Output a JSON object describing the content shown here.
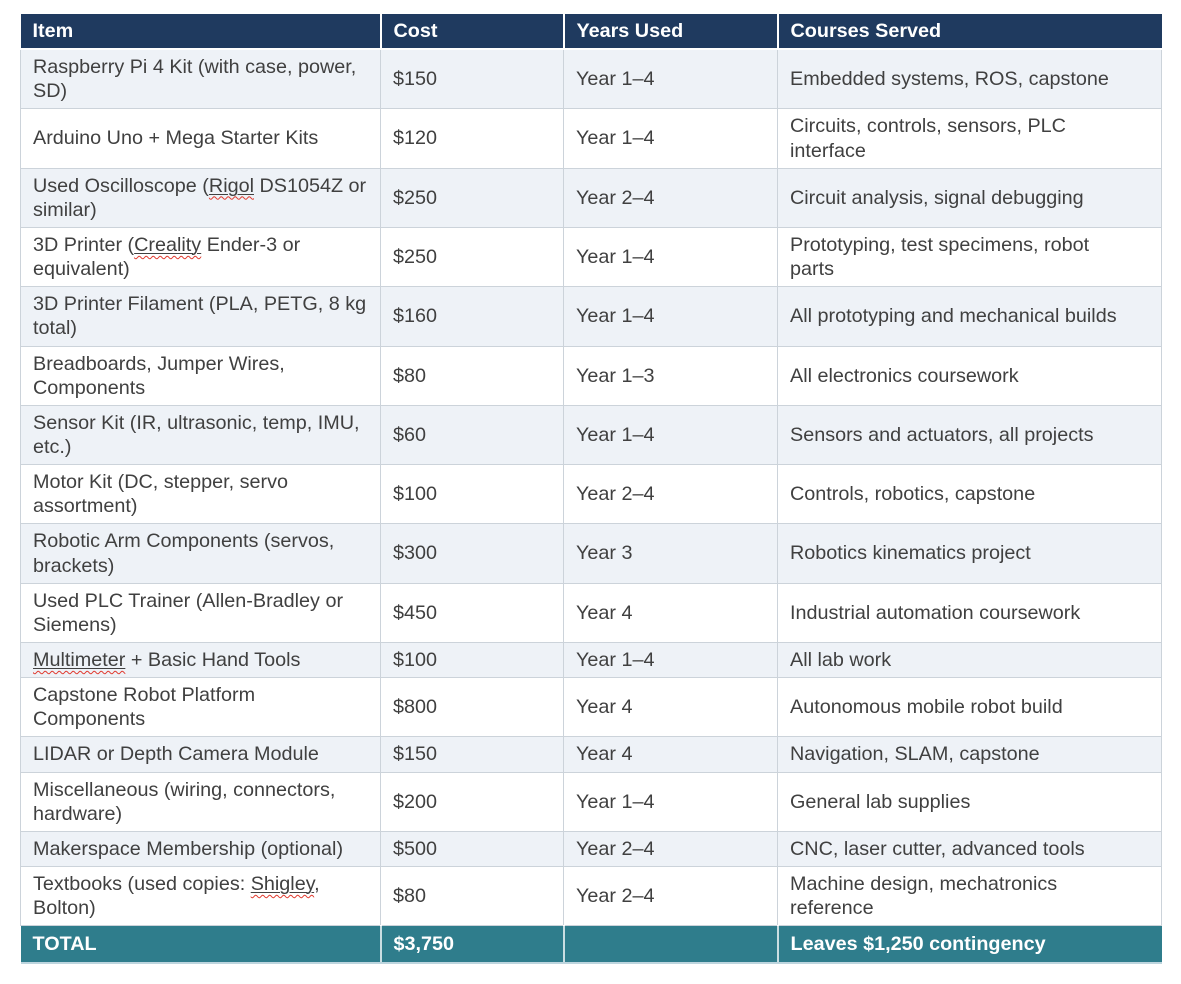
{
  "table": {
    "columns": [
      {
        "label": "Item"
      },
      {
        "label": "Cost"
      },
      {
        "label": "Years Used"
      },
      {
        "label": "Courses Served"
      }
    ],
    "rows": [
      {
        "item": "Raspberry Pi 4 Kit (with case, power, SD)",
        "cost": "$150",
        "years": "Year 1–4",
        "courses": "Embedded systems, ROS, capstone"
      },
      {
        "item": "Arduino Uno + Mega Starter Kits",
        "cost": "$120",
        "years": "Year 1–4",
        "courses": "Circuits, controls, sensors, PLC interface"
      },
      {
        "item": "Used Oscilloscope (Rigol DS1054Z or similar)",
        "cost": "$250",
        "years": "Year 2–4",
        "courses": "Circuit analysis, signal debugging"
      },
      {
        "item": "3D Printer (Creality Ender-3 or equivalent)",
        "cost": "$250",
        "years": "Year 1–4",
        "courses": "Prototyping, test specimens, robot parts"
      },
      {
        "item": "3D Printer Filament (PLA, PETG, 8 kg total)",
        "cost": "$160",
        "years": "Year 1–4",
        "courses": "All prototyping and mechanical builds"
      },
      {
        "item": "Breadboards, Jumper Wires, Components",
        "cost": "$80",
        "years": "Year 1–3",
        "courses": "All electronics coursework"
      },
      {
        "item": "Sensor Kit (IR, ultrasonic, temp, IMU, etc.)",
        "cost": "$60",
        "years": "Year 1–4",
        "courses": "Sensors and actuators, all projects"
      },
      {
        "item": "Motor Kit (DC, stepper, servo assortment)",
        "cost": "$100",
        "years": "Year 2–4",
        "courses": "Controls, robotics, capstone"
      },
      {
        "item": "Robotic Arm Components (servos, brackets)",
        "cost": "$300",
        "years": "Year 3",
        "courses": "Robotics kinematics project"
      },
      {
        "item": "Used PLC Trainer (Allen-Bradley or Siemens)",
        "cost": "$450",
        "years": "Year 4",
        "courses": "Industrial automation coursework"
      },
      {
        "item": "Multimeter + Basic Hand Tools",
        "cost": "$100",
        "years": "Year 1–4",
        "courses": "All lab work"
      },
      {
        "item": "Capstone Robot Platform Components",
        "cost": "$800",
        "years": "Year 4",
        "courses": "Autonomous mobile robot build"
      },
      {
        "item": "LIDAR or Depth Camera Module",
        "cost": "$150",
        "years": "Year 4",
        "courses": "Navigation, SLAM, capstone"
      },
      {
        "item": "Miscellaneous (wiring, connectors, hardware)",
        "cost": "$200",
        "years": "Year 1–4",
        "courses": "General lab supplies"
      },
      {
        "item": "Makerspace Membership (optional)",
        "cost": "$500",
        "years": "Year 2–4",
        "courses": "CNC, laser cutter, advanced tools"
      },
      {
        "item": "Textbooks (used copies: Shigley, Bolton)",
        "cost": "$80",
        "years": "Year 2–4",
        "courses": "Machine design, mechatronics reference"
      }
    ],
    "footer": {
      "label": "TOTAL",
      "cost": "$3,750",
      "years": "",
      "courses": "Leaves $1,250 contingency"
    },
    "misspelled_words": [
      "Rigol",
      "Creality",
      "Multimeter",
      "Shigley"
    ],
    "colors": {
      "header_bg": "#1f3a5f",
      "header_text": "#ffffff",
      "row_bg": "#ffffff",
      "row_alt_bg": "#eef2f7",
      "total_bg": "#2f7d8c",
      "total_text": "#ffffff",
      "border": "#ccd3da",
      "body_text": "#404040",
      "squiggle": "#e0382d",
      "bottom_edge": "#bdd5de"
    }
  }
}
